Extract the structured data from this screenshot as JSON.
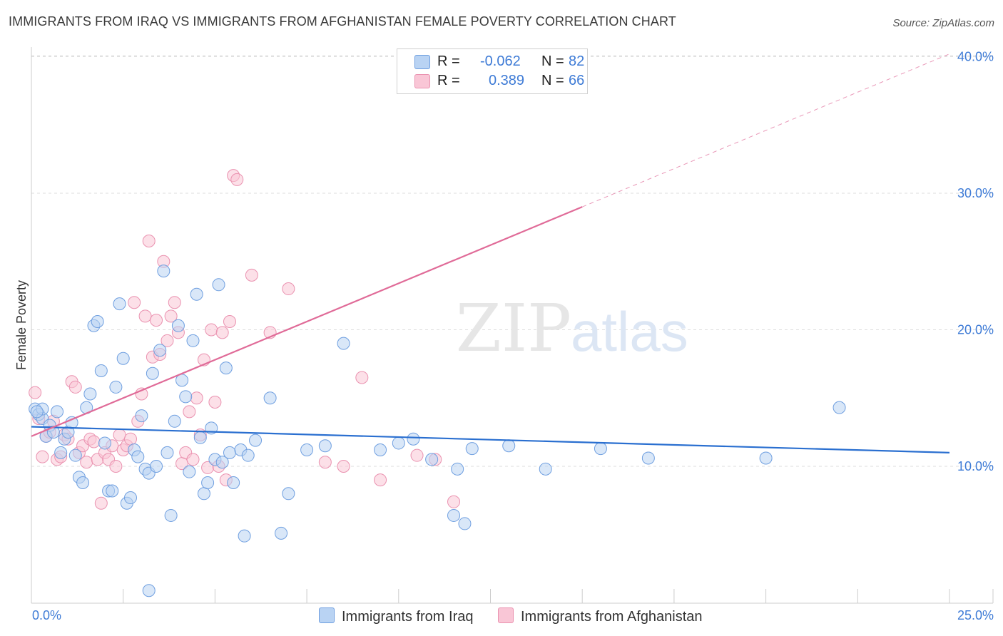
{
  "title": "IMMIGRANTS FROM IRAQ VS IMMIGRANTS FROM AFGHANISTAN FEMALE POVERTY CORRELATION CHART",
  "source": "Source: ZipAtlas.com",
  "watermark": {
    "zip": "ZIP",
    "atlas": "atlas"
  },
  "colors": {
    "iraq_fill": "#b9d3f3",
    "iraq_stroke": "#6f9fe0",
    "iraq_line": "#2a6fd0",
    "afg_fill": "#f9c6d6",
    "afg_stroke": "#ea92b0",
    "afg_line": "#e06b98",
    "tick_label": "#3e7bd6",
    "grid": "#dddddd"
  },
  "legend": {
    "r_label": "R =",
    "n_label": "N =",
    "iraq_r": "-0.062",
    "iraq_n": "82",
    "afg_r": "0.389",
    "afg_n": "66"
  },
  "bottom_legend": {
    "iraq": "Immigrants from Iraq",
    "afg": "Immigrants from Afghanistan"
  },
  "chart_data": {
    "type": "scatter",
    "title": "IMMIGRANTS FROM IRAQ VS IMMIGRANTS FROM AFGHANISTAN FEMALE POVERTY CORRELATION CHART",
    "xlabel": "",
    "ylabel": "Female Poverty",
    "xlim": [
      0,
      25
    ],
    "ylim": [
      0,
      42
    ],
    "x_tick_labels": [
      "0.0%",
      "25.0%"
    ],
    "y_ticks": [
      10,
      20,
      30,
      40
    ],
    "y_tick_labels": [
      "10.0%",
      "20.0%",
      "30.0%",
      "40.0%"
    ],
    "series": [
      {
        "name": "Immigrants from Iraq",
        "r": -0.062,
        "n": 82,
        "trend": {
          "x": [
            0,
            25
          ],
          "y": [
            12.9,
            11.0
          ]
        },
        "points": [
          [
            0.1,
            14.2
          ],
          [
            0.2,
            13.8
          ],
          [
            0.3,
            13.5
          ],
          [
            0.4,
            12.2
          ],
          [
            0.5,
            13.0
          ],
          [
            0.6,
            12.5
          ],
          [
            0.7,
            14.0
          ],
          [
            0.8,
            11.0
          ],
          [
            0.9,
            12.0
          ],
          [
            1.0,
            12.5
          ],
          [
            1.1,
            13.2
          ],
          [
            1.2,
            10.8
          ],
          [
            1.3,
            9.2
          ],
          [
            1.4,
            8.8
          ],
          [
            1.5,
            14.3
          ],
          [
            1.6,
            15.3
          ],
          [
            1.7,
            20.3
          ],
          [
            1.8,
            20.6
          ],
          [
            1.9,
            17.0
          ],
          [
            2.0,
            11.7
          ],
          [
            2.1,
            8.2
          ],
          [
            2.2,
            8.2
          ],
          [
            2.3,
            15.8
          ],
          [
            2.4,
            21.9
          ],
          [
            2.5,
            17.9
          ],
          [
            2.6,
            7.3
          ],
          [
            2.7,
            7.7
          ],
          [
            2.8,
            11.2
          ],
          [
            2.9,
            10.7
          ],
          [
            3.0,
            13.7
          ],
          [
            3.1,
            9.8
          ],
          [
            3.2,
            9.5
          ],
          [
            3.3,
            16.8
          ],
          [
            3.4,
            10.0
          ],
          [
            3.5,
            18.5
          ],
          [
            3.6,
            24.3
          ],
          [
            3.7,
            11.0
          ],
          [
            3.8,
            6.4
          ],
          [
            3.9,
            13.3
          ],
          [
            4.0,
            20.3
          ],
          [
            4.1,
            16.3
          ],
          [
            4.2,
            15.1
          ],
          [
            4.3,
            9.6
          ],
          [
            4.4,
            19.2
          ],
          [
            4.5,
            22.6
          ],
          [
            4.6,
            12.1
          ],
          [
            4.7,
            8.0
          ],
          [
            4.8,
            8.8
          ],
          [
            4.9,
            12.8
          ],
          [
            5.0,
            10.5
          ],
          [
            5.1,
            23.3
          ],
          [
            5.2,
            10.3
          ],
          [
            5.3,
            17.2
          ],
          [
            5.4,
            11.0
          ],
          [
            5.5,
            8.8
          ],
          [
            5.7,
            11.2
          ],
          [
            5.8,
            4.9
          ],
          [
            5.9,
            10.8
          ],
          [
            6.1,
            11.9
          ],
          [
            6.5,
            15.0
          ],
          [
            6.8,
            5.1
          ],
          [
            7.0,
            8.0
          ],
          [
            7.5,
            11.2
          ],
          [
            8.0,
            11.5
          ],
          [
            8.5,
            19.0
          ],
          [
            9.5,
            11.2
          ],
          [
            10.0,
            11.7
          ],
          [
            10.4,
            12.0
          ],
          [
            10.9,
            10.5
          ],
          [
            11.5,
            6.4
          ],
          [
            11.6,
            9.8
          ],
          [
            11.8,
            5.8
          ],
          [
            12.0,
            11.3
          ],
          [
            13.0,
            11.5
          ],
          [
            14.0,
            9.8
          ],
          [
            15.5,
            11.3
          ],
          [
            16.8,
            10.6
          ],
          [
            20.0,
            10.6
          ],
          [
            22.0,
            14.3
          ],
          [
            0.3,
            14.2
          ],
          [
            0.15,
            14.0
          ],
          [
            3.2,
            0.9
          ]
        ]
      },
      {
        "name": "Immigrants from Afghanistan",
        "r": 0.389,
        "n": 66,
        "trend": {
          "x": [
            0,
            15
          ],
          "y": [
            12.2,
            29.0
          ]
        },
        "trend_ext": {
          "x": [
            15,
            25
          ],
          "y": [
            29.0,
            40.2
          ]
        },
        "points": [
          [
            0.1,
            15.4
          ],
          [
            0.2,
            13.5
          ],
          [
            0.3,
            10.7
          ],
          [
            0.4,
            12.2
          ],
          [
            0.5,
            12.5
          ],
          [
            0.6,
            13.3
          ],
          [
            0.7,
            10.5
          ],
          [
            0.8,
            10.7
          ],
          [
            0.9,
            12.3
          ],
          [
            1.0,
            12.0
          ],
          [
            1.1,
            16.2
          ],
          [
            1.2,
            15.8
          ],
          [
            1.3,
            11.0
          ],
          [
            1.4,
            11.5
          ],
          [
            1.5,
            10.3
          ],
          [
            1.6,
            12.0
          ],
          [
            1.7,
            11.8
          ],
          [
            1.8,
            10.5
          ],
          [
            1.9,
            7.3
          ],
          [
            2.0,
            11.0
          ],
          [
            2.1,
            10.5
          ],
          [
            2.2,
            11.5
          ],
          [
            2.3,
            10.0
          ],
          [
            2.4,
            12.3
          ],
          [
            2.5,
            11.2
          ],
          [
            2.6,
            11.5
          ],
          [
            2.7,
            12.0
          ],
          [
            2.8,
            22.0
          ],
          [
            2.9,
            13.3
          ],
          [
            3.0,
            15.3
          ],
          [
            3.1,
            21.0
          ],
          [
            3.2,
            26.5
          ],
          [
            3.3,
            18.0
          ],
          [
            3.4,
            20.7
          ],
          [
            3.5,
            18.2
          ],
          [
            3.6,
            25.0
          ],
          [
            3.7,
            19.2
          ],
          [
            3.8,
            21.0
          ],
          [
            3.9,
            22.0
          ],
          [
            4.0,
            19.8
          ],
          [
            4.1,
            10.2
          ],
          [
            4.2,
            11.0
          ],
          [
            4.3,
            14.0
          ],
          [
            4.4,
            10.5
          ],
          [
            4.5,
            15.0
          ],
          [
            4.6,
            12.3
          ],
          [
            4.7,
            17.8
          ],
          [
            4.8,
            9.9
          ],
          [
            4.9,
            20.0
          ],
          [
            5.0,
            14.7
          ],
          [
            5.1,
            10.0
          ],
          [
            5.2,
            19.8
          ],
          [
            5.3,
            9.0
          ],
          [
            5.4,
            20.6
          ],
          [
            5.5,
            31.3
          ],
          [
            5.6,
            31.0
          ],
          [
            6.0,
            24.0
          ],
          [
            6.5,
            19.8
          ],
          [
            7.0,
            23.0
          ],
          [
            8.0,
            10.3
          ],
          [
            8.5,
            10.0
          ],
          [
            9.0,
            16.5
          ],
          [
            9.5,
            9.0
          ],
          [
            10.5,
            10.8
          ],
          [
            11.0,
            10.5
          ],
          [
            11.5,
            7.4
          ]
        ]
      }
    ]
  }
}
